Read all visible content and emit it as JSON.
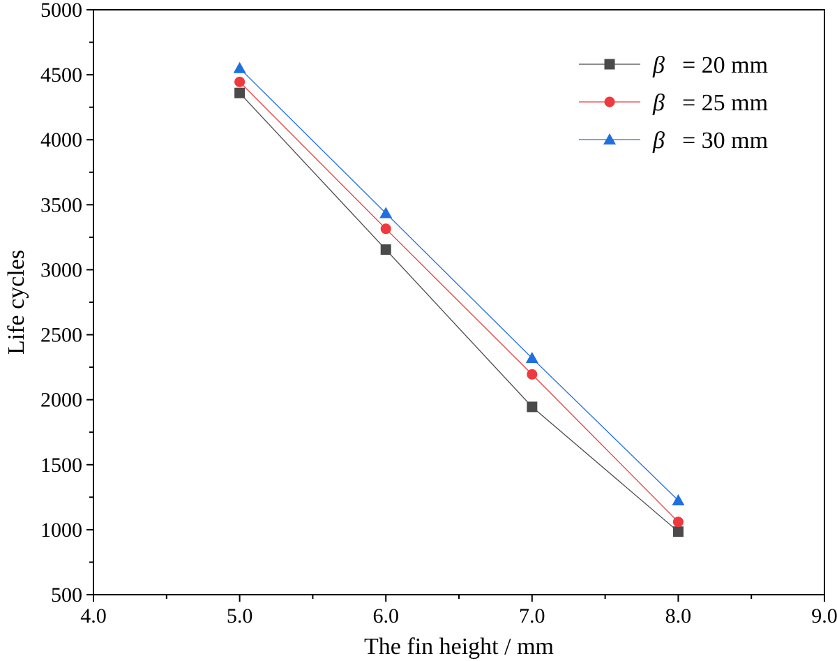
{
  "chart_data": {
    "type": "line",
    "xlabel": "The fin height / mm",
    "ylabel": "Life cycles",
    "xlim": [
      4.0,
      9.0
    ],
    "ylim": [
      500,
      5000
    ],
    "x_ticks": [
      4.0,
      5.0,
      6.0,
      7.0,
      8.0,
      9.0
    ],
    "x_tick_labels": [
      "4.0",
      "5.0",
      "6.0",
      "7.0",
      "8.0",
      "9.0"
    ],
    "y_ticks": [
      500,
      1000,
      1500,
      2000,
      2500,
      3000,
      3500,
      4000,
      4500,
      5000
    ],
    "y_tick_labels": [
      "500",
      "1000",
      "1500",
      "2000",
      "2500",
      "3000",
      "3500",
      "4000",
      "4500",
      "5000"
    ],
    "grid": false,
    "legend_position": "top-right",
    "x": [
      5.0,
      6.0,
      7.0,
      8.0
    ],
    "series": [
      {
        "name": "= 20 mm",
        "symbol": "β",
        "marker": "square",
        "color": "#4a4a4a",
        "values": [
          4360,
          3155,
          1945,
          985
        ]
      },
      {
        "name": "= 25 mm",
        "symbol": "β",
        "marker": "circle",
        "color": "#f0393e",
        "values": [
          4445,
          3315,
          2195,
          1060
        ]
      },
      {
        "name": "= 30 mm",
        "symbol": "β",
        "marker": "triangle",
        "color": "#1f6fe0",
        "values": [
          4550,
          3435,
          2320,
          1225
        ]
      }
    ]
  }
}
